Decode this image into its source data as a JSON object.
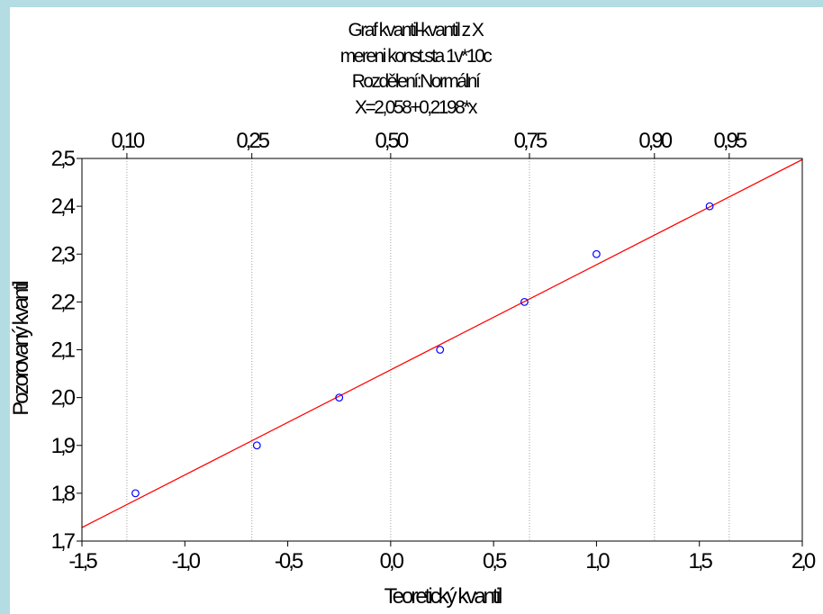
{
  "chart_data": {
    "type": "scatter",
    "title_lines": [
      "Graf kvantil-kvantil z X",
      "mereni konst.sta 1v*10c",
      "Rozdělení:Normální",
      "X=2,058+0,2198*x"
    ],
    "xlabel": "Teoretický kvantil",
    "ylabel": "Pozorovaný kvantil",
    "xlim": [
      -1.5,
      2.0
    ],
    "ylim": [
      1.7,
      2.5
    ],
    "x_ticks": [
      "-1,5",
      "-1,0",
      "-0,5",
      "0,0",
      "0,5",
      "1,0",
      "1,5",
      "2,0"
    ],
    "y_ticks": [
      "1,7",
      "1,8",
      "1,9",
      "2,0",
      "2,1",
      "2,2",
      "2,3",
      "2,4",
      "2,5"
    ],
    "top_ticks": [
      {
        "p": "0,10",
        "z": -1.2816
      },
      {
        "p": "0,25",
        "z": -0.6745
      },
      {
        "p": "0,50",
        "z": 0.0
      },
      {
        "p": "0,75",
        "z": 0.6745
      },
      {
        "p": "0,90",
        "z": 1.2816
      },
      {
        "p": "0,95",
        "z": 1.6449
      }
    ],
    "points": [
      {
        "x": -1.24,
        "y": 1.8
      },
      {
        "x": -0.65,
        "y": 1.9
      },
      {
        "x": -0.25,
        "y": 2.0
      },
      {
        "x": 0.24,
        "y": 2.1
      },
      {
        "x": 0.65,
        "y": 2.2
      },
      {
        "x": 1.0,
        "y": 2.3
      },
      {
        "x": 1.55,
        "y": 2.4
      }
    ],
    "fit_line": {
      "intercept": 2.058,
      "slope": 0.2198
    },
    "grid": "vertical dotted at top-axis quantiles",
    "colors": {
      "background": "#b4dce3",
      "plot_bg": "#ffffff",
      "points": "#0000ff",
      "fit_line": "#ff0000",
      "grid": "#a0a0a0"
    }
  }
}
